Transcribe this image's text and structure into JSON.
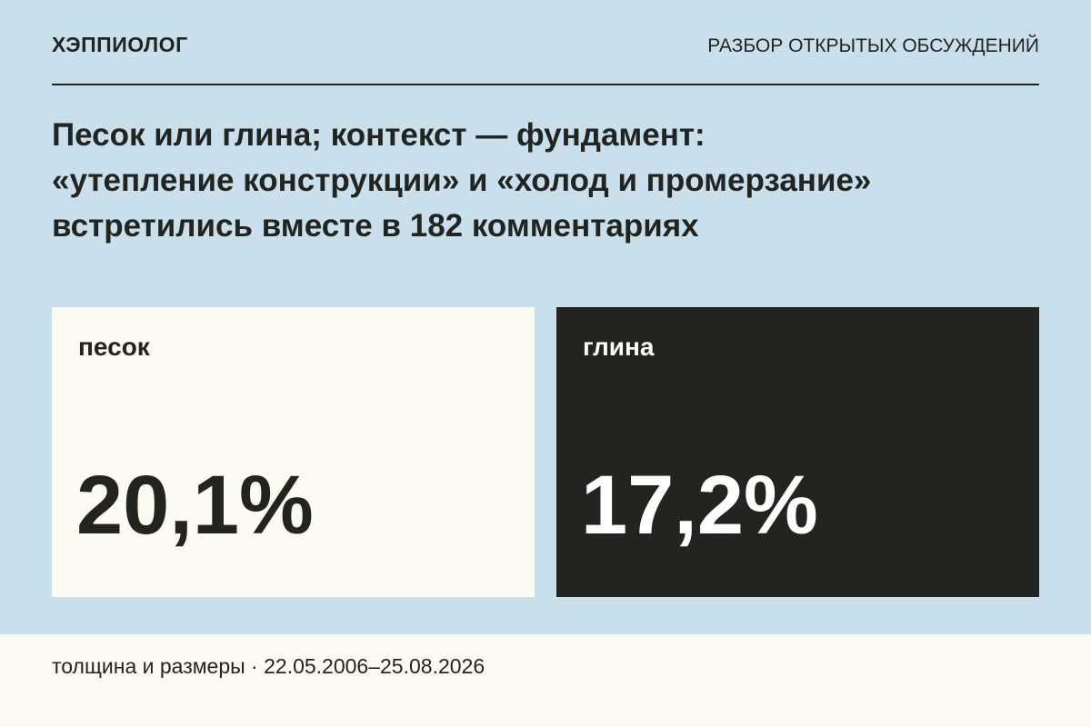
{
  "header": {
    "brand": "ХЭППИОЛОГ",
    "section": "РАЗБОР ОТКРЫТЫХ ОБСУЖДЕНИЙ"
  },
  "title": [
    "Песок или глина; контекст — фундамент:",
    "«утепление конструкции» и «холод и промерзание»",
    "встретились вместе в 182 комментариях"
  ],
  "cards": [
    {
      "label": "песок",
      "value": "20,1%"
    },
    {
      "label": "глина",
      "value": "17,2%"
    }
  ],
  "footer": "толщина и размеры · 22.05.2006–25.08.2026"
}
